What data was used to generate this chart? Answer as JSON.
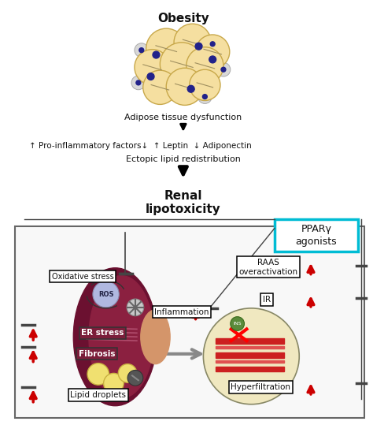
{
  "title": "Obesity",
  "adipose_text": "Adipose tissue dysfunction",
  "factors_text": "↑ Pro-inflammatory factors↓  ↑ Leptin  ↓ Adiponectin",
  "ectopic_text": "Ectopic lipid redistribution",
  "renal_text": "Renal\nlipotoxicity",
  "ppar_text": "PPARγ\nagonists",
  "ppar_box_color": "#00bcd4",
  "kidney_color": "#7b1d3a",
  "lipid_cell_color": "#f5dfa0",
  "lipid_cell_edge": "#c8a84a",
  "grey_cell_color": "#d8d8d8",
  "blue_dot_color": "#22228a",
  "red_arrow_color": "#cc0000",
  "inhibit_color": "#444444",
  "background": "#ffffff",
  "outer_box_edge": "#666666",
  "outer_box_face": "#f8f8f8",
  "kidney_dark": "#6b1030",
  "kidney_med": "#8b2040",
  "pelvis_color": "#d4956a",
  "ros_color": "#b0b8e0",
  "glom_color": "#f0e8c0",
  "vessel_red": "#cc2020",
  "vessel_light": "#e05050",
  "white": "#ffffff",
  "black": "#111111"
}
